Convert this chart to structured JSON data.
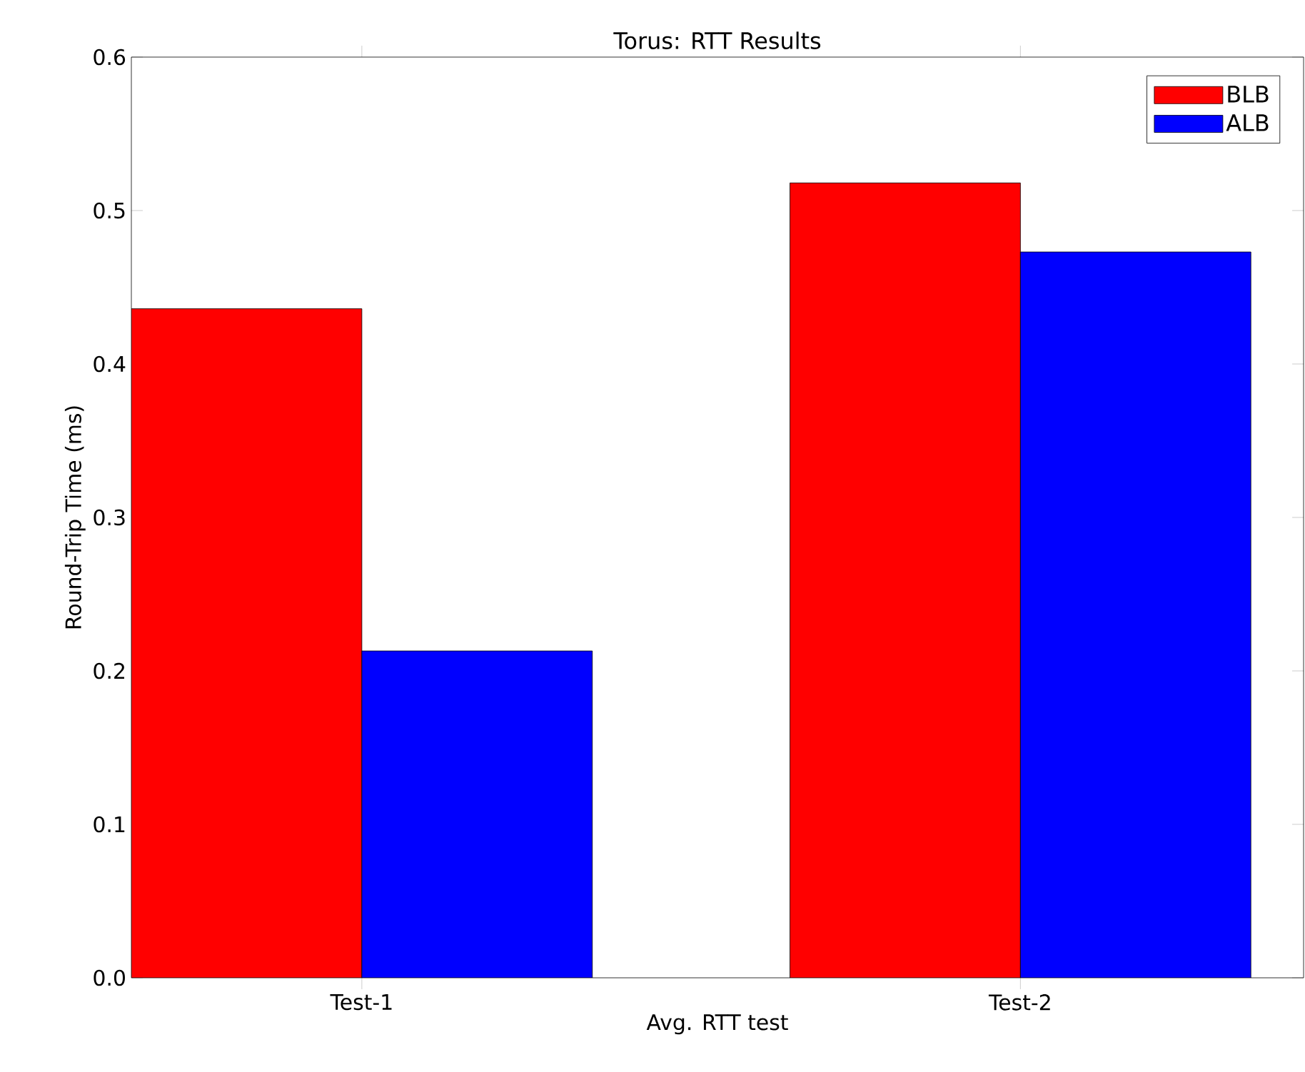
{
  "chart_data": {
    "type": "bar",
    "title": "Torus: RTT Results",
    "xlabel": "Avg. RTT test",
    "ylabel": "Round-Trip Time  (ms)",
    "categories": [
      "Test-1",
      "Test-2"
    ],
    "series": [
      {
        "name": "BLB",
        "color": "#ff0000",
        "values": [
          0.436,
          0.518
        ]
      },
      {
        "name": "ALB",
        "color": "#0000ff",
        "values": [
          0.213,
          0.473
        ]
      }
    ],
    "ylim": [
      0,
      0.6
    ],
    "yticks": [
      {
        "value": 0,
        "label": "0.0"
      },
      0.1,
      0.2,
      0.3,
      0.4,
      0.5,
      0.6
    ],
    "grid": false,
    "legend": "top right"
  }
}
